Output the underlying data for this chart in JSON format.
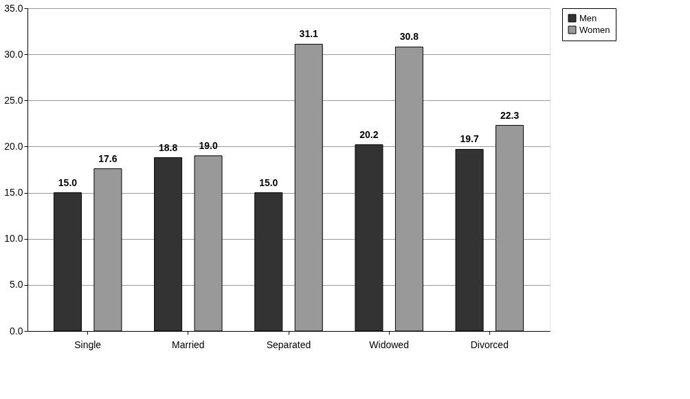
{
  "chart_data": {
    "type": "bar",
    "categories": [
      "Single",
      "Married",
      "Separated",
      "Widowed",
      "Divorced"
    ],
    "series": [
      {
        "name": "Men",
        "color": "#333333",
        "values": [
          15.0,
          18.8,
          15.0,
          20.2,
          19.7
        ],
        "value_labels": [
          "15.0",
          "18.8",
          "15.0",
          "20.2",
          "19.7"
        ]
      },
      {
        "name": "Women",
        "color": "#999999",
        "values": [
          17.6,
          19.0,
          31.1,
          30.8,
          22.3
        ],
        "value_labels": [
          "17.6",
          "19.0",
          "31.1",
          "30.8",
          "22.3"
        ]
      }
    ],
    "ylim": [
      0,
      35
    ],
    "yticks": [
      {
        "value": 0,
        "label": "0.0"
      },
      {
        "value": 5,
        "label": "5.0"
      },
      {
        "value": 10,
        "label": "10.0"
      },
      {
        "value": 15,
        "label": "15.0"
      },
      {
        "value": 20,
        "label": "20.0"
      },
      {
        "value": 25,
        "label": "25.0"
      },
      {
        "value": 30,
        "label": "30.0"
      },
      {
        "value": 35,
        "label": "35.0"
      }
    ],
    "grid": "y",
    "legend": "right"
  }
}
